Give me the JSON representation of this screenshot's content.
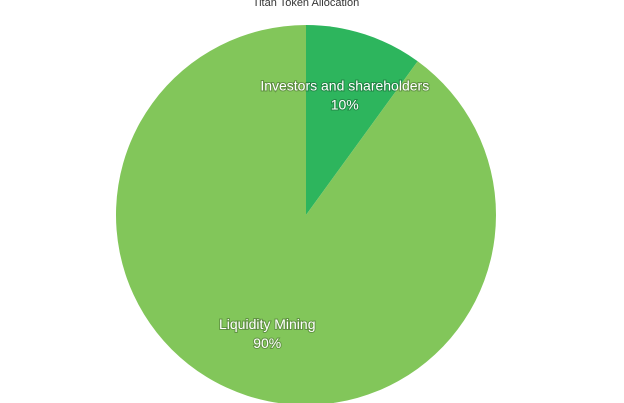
{
  "chart_data": {
    "type": "pie",
    "title": "Titan Token Allocation",
    "categories": [
      "Investors and shareholders",
      "Liquidity Mining"
    ],
    "values": [
      10,
      90
    ],
    "value_labels": [
      "10%",
      "90%"
    ],
    "colors": [
      "#2db55d",
      "#82c65a"
    ]
  }
}
